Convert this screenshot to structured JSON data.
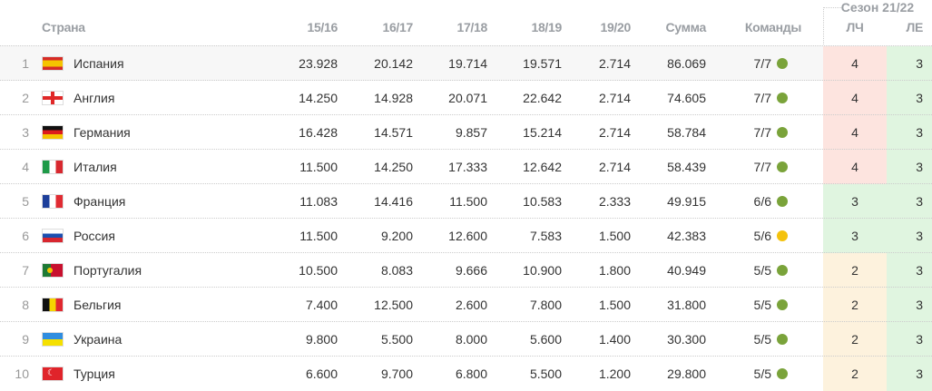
{
  "header": {
    "country": "Страна",
    "seasons": [
      "15/16",
      "16/17",
      "17/18",
      "18/19",
      "19/20"
    ],
    "sum": "Сумма",
    "teams": "Команды",
    "season_group": "Сезон 21/22",
    "cl": "ЛЧ",
    "el": "ЛЕ"
  },
  "colors": {
    "cl_4": "#fde4df",
    "cl_3": "#e0f5e0",
    "cl_2": "#fdf2dd",
    "el": "#e0f5e0",
    "dot_green": "#7aa33a",
    "dot_yellow": "#f4c20d"
  },
  "rows": [
    {
      "rank": "1",
      "country": "Испания",
      "flag": "spain-flag",
      "values": [
        "23.928",
        "20.142",
        "19.714",
        "19.571",
        "2.714"
      ],
      "sum": "86.069",
      "teams": "7/7",
      "status": "green",
      "cl": "4",
      "el": "3"
    },
    {
      "rank": "2",
      "country": "Англия",
      "flag": "england-flag",
      "values": [
        "14.250",
        "14.928",
        "20.071",
        "22.642",
        "2.714"
      ],
      "sum": "74.605",
      "teams": "7/7",
      "status": "green",
      "cl": "4",
      "el": "3"
    },
    {
      "rank": "3",
      "country": "Германия",
      "flag": "germany-flag",
      "values": [
        "16.428",
        "14.571",
        "9.857",
        "15.214",
        "2.714"
      ],
      "sum": "58.784",
      "teams": "7/7",
      "status": "green",
      "cl": "4",
      "el": "3"
    },
    {
      "rank": "4",
      "country": "Италия",
      "flag": "italy-flag",
      "values": [
        "11.500",
        "14.250",
        "17.333",
        "12.642",
        "2.714"
      ],
      "sum": "58.439",
      "teams": "7/7",
      "status": "green",
      "cl": "4",
      "el": "3"
    },
    {
      "rank": "5",
      "country": "Франция",
      "flag": "france-flag",
      "values": [
        "11.083",
        "14.416",
        "11.500",
        "10.583",
        "2.333"
      ],
      "sum": "49.915",
      "teams": "6/6",
      "status": "green",
      "cl": "3",
      "el": "3"
    },
    {
      "rank": "6",
      "country": "Россия",
      "flag": "russia-flag",
      "values": [
        "11.500",
        "9.200",
        "12.600",
        "7.583",
        "1.500"
      ],
      "sum": "42.383",
      "teams": "5/6",
      "status": "yellow",
      "cl": "3",
      "el": "3"
    },
    {
      "rank": "7",
      "country": "Португалия",
      "flag": "portugal-flag",
      "values": [
        "10.500",
        "8.083",
        "9.666",
        "10.900",
        "1.800"
      ],
      "sum": "40.949",
      "teams": "5/5",
      "status": "green",
      "cl": "2",
      "el": "3"
    },
    {
      "rank": "8",
      "country": "Бельгия",
      "flag": "belgium-flag",
      "values": [
        "7.400",
        "12.500",
        "2.600",
        "7.800",
        "1.500"
      ],
      "sum": "31.800",
      "teams": "5/5",
      "status": "green",
      "cl": "2",
      "el": "3"
    },
    {
      "rank": "9",
      "country": "Украина",
      "flag": "ukraine-flag",
      "values": [
        "9.800",
        "5.500",
        "8.000",
        "5.600",
        "1.400"
      ],
      "sum": "30.300",
      "teams": "5/5",
      "status": "green",
      "cl": "2",
      "el": "3"
    },
    {
      "rank": "10",
      "country": "Турция",
      "flag": "turkey-flag",
      "values": [
        "6.600",
        "9.700",
        "6.800",
        "5.500",
        "1.200"
      ],
      "sum": "29.800",
      "teams": "5/5",
      "status": "green",
      "cl": "2",
      "el": "3"
    }
  ]
}
